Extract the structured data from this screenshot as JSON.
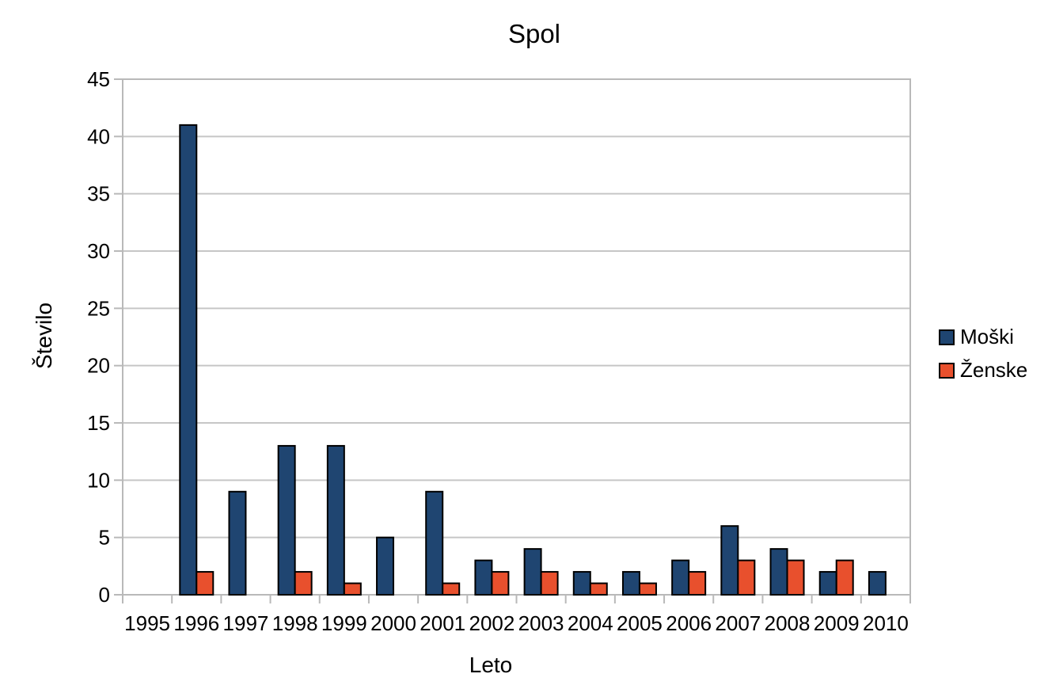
{
  "chart_data": {
    "type": "bar",
    "title": "Spol",
    "xlabel": "Leto",
    "ylabel": "Število",
    "categories": [
      "1995",
      "1996",
      "1997",
      "1998",
      "1999",
      "2000",
      "2001",
      "2002",
      "2003",
      "2004",
      "2005",
      "2006",
      "2007",
      "2008",
      "2009",
      "2010"
    ],
    "series": [
      {
        "name": "Moški",
        "color": "#1F4571",
        "values": [
          0,
          41,
          9,
          13,
          13,
          5,
          9,
          3,
          4,
          2,
          2,
          3,
          6,
          4,
          2,
          2
        ]
      },
      {
        "name": "Ženske",
        "color": "#E8502D",
        "values": [
          0,
          2,
          0,
          2,
          1,
          0,
          1,
          2,
          2,
          1,
          1,
          2,
          3,
          3,
          3,
          0
        ]
      }
    ],
    "ylim": [
      0,
      45
    ],
    "yticks": [
      0,
      5,
      10,
      15,
      20,
      25,
      30,
      35,
      40,
      45
    ],
    "grid": true,
    "legend_position": "right",
    "grid_color": "#C6C6C6",
    "axis_color": "#B9B9B9",
    "bar_border_color": "#000000",
    "text_color": "#000000"
  }
}
